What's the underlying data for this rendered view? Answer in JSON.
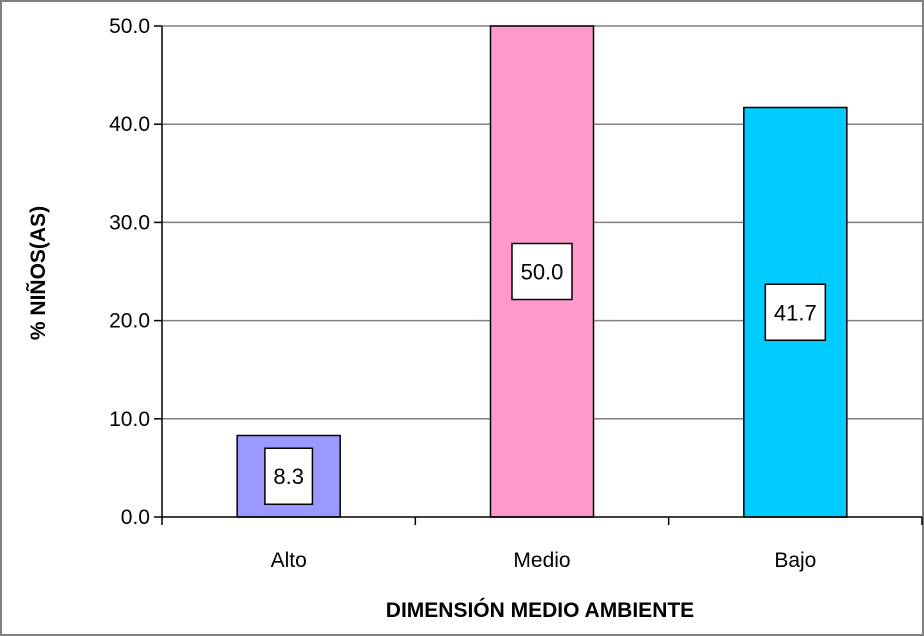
{
  "chart_data": {
    "type": "bar",
    "title": "",
    "xlabel": "DIMENSIÓN MEDIO AMBIENTE",
    "ylabel": "% NIÑOS(AS)",
    "categories": [
      "Alto",
      "Medio",
      "Bajo"
    ],
    "values": [
      8.3,
      50.0,
      41.7
    ],
    "data_labels": [
      "8.3",
      "50.0",
      "41.7"
    ],
    "bar_colors": [
      "#9999FF",
      "#FF99CC",
      "#00CCFF"
    ],
    "ylim": [
      0,
      50
    ],
    "yticks": [
      0,
      10,
      20,
      30,
      40,
      50
    ],
    "ytick_labels": [
      "0.0",
      "10.0",
      "20.0",
      "30.0",
      "40.0",
      "50.0"
    ],
    "grid": true,
    "legend": "none"
  }
}
